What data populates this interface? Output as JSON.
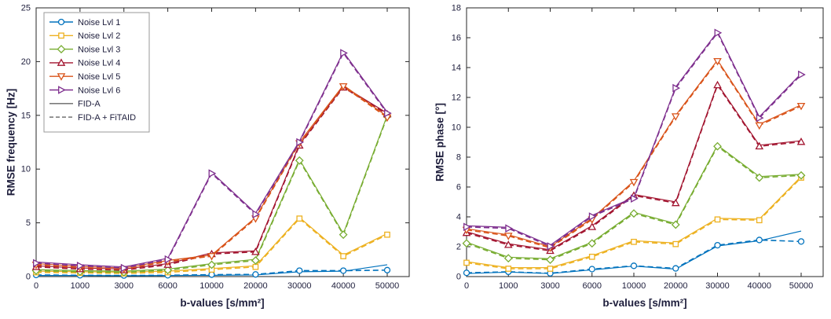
{
  "chart_data": [
    {
      "type": "line",
      "title": "",
      "xlabel": "b-values [s/mm²]",
      "ylabel": "RMSE frequency [Hz]",
      "ylim": [
        0,
        25
      ],
      "ytick_step": 5,
      "grid": false,
      "legend_position": "top-left",
      "categories": [
        "0",
        "1000",
        "3000",
        "6000",
        "10000",
        "20000",
        "30000",
        "40000",
        "50000"
      ],
      "series": [
        {
          "name": "Noise Lvl 1",
          "color": "#0072BD",
          "marker": "circle",
          "fid_a": [
            0.1,
            0.1,
            0.08,
            0.1,
            0.12,
            0.15,
            0.45,
            0.5,
            1.1
          ],
          "fid_a_fitaid": [
            0.15,
            0.12,
            0.1,
            0.12,
            0.18,
            0.2,
            0.55,
            0.55,
            0.6
          ]
        },
        {
          "name": "Noise Lvl 2",
          "color": "#EDB120",
          "marker": "square",
          "fid_a": [
            0.5,
            0.45,
            0.4,
            0.5,
            0.75,
            1.0,
            5.5,
            2.0,
            4.0
          ],
          "fid_a_fitaid": [
            0.5,
            0.45,
            0.4,
            0.5,
            0.75,
            1.0,
            5.5,
            2.0,
            4.0
          ]
        },
        {
          "name": "Noise Lvl 3",
          "color": "#77AC30",
          "marker": "diamond",
          "fid_a": [
            0.65,
            0.55,
            0.5,
            0.7,
            1.2,
            1.6,
            10.9,
            4.0,
            15.0
          ],
          "fid_a_fitaid": [
            0.65,
            0.55,
            0.5,
            0.7,
            1.2,
            1.6,
            10.9,
            4.0,
            15.0
          ]
        },
        {
          "name": "Noise Lvl 4",
          "color": "#A2142F",
          "marker": "triangle-up",
          "fid_a": [
            1.0,
            0.8,
            0.7,
            1.2,
            2.2,
            2.4,
            12.3,
            17.7,
            15.2
          ],
          "fid_a_fitaid": [
            1.0,
            0.8,
            0.7,
            1.2,
            2.2,
            2.4,
            12.3,
            17.7,
            15.2
          ]
        },
        {
          "name": "Noise Lvl 5",
          "color": "#D95319",
          "marker": "triangle-down",
          "fid_a": [
            1.2,
            0.95,
            0.8,
            1.5,
            2.0,
            5.5,
            12.5,
            17.8,
            14.9
          ],
          "fid_a_fitaid": [
            1.2,
            0.95,
            0.8,
            1.5,
            2.0,
            5.5,
            12.5,
            17.8,
            14.9
          ]
        },
        {
          "name": "Noise Lvl 6",
          "color": "#7E2F8E",
          "marker": "triangle-right",
          "fid_a": [
            1.35,
            1.1,
            0.9,
            1.7,
            9.7,
            5.9,
            12.6,
            20.9,
            15.3
          ],
          "fid_a_fitaid": [
            1.35,
            1.1,
            0.9,
            1.7,
            9.7,
            5.9,
            12.6,
            20.9,
            15.3
          ]
        }
      ]
    },
    {
      "type": "line",
      "title": "",
      "xlabel": "b-values [s/mm²]",
      "ylabel": "RMSE phase [°]",
      "ylim": [
        0,
        18
      ],
      "ytick_step": 2,
      "grid": false,
      "legend_position": "none",
      "categories": [
        "0",
        "1000",
        "3000",
        "6000",
        "10000",
        "20000",
        "30000",
        "40000",
        "50000"
      ],
      "series": [
        {
          "name": "Noise Lvl 1",
          "color": "#0072BD",
          "marker": "circle",
          "fid_a": [
            0.2,
            0.3,
            0.2,
            0.45,
            0.7,
            0.5,
            2.05,
            2.4,
            3.05
          ],
          "fid_a_fitaid": [
            0.25,
            0.32,
            0.22,
            0.5,
            0.72,
            0.55,
            2.1,
            2.45,
            2.35
          ]
        },
        {
          "name": "Noise Lvl 2",
          "color": "#EDB120",
          "marker": "square",
          "fid_a": [
            1.0,
            0.6,
            0.6,
            1.4,
            2.4,
            2.25,
            3.9,
            3.85,
            6.7
          ],
          "fid_a_fitaid": [
            1.0,
            0.6,
            0.6,
            1.4,
            2.4,
            2.25,
            3.9,
            3.85,
            6.7
          ]
        },
        {
          "name": "Noise Lvl 3",
          "color": "#77AC30",
          "marker": "diamond",
          "fid_a": [
            2.3,
            1.3,
            1.2,
            2.3,
            4.3,
            3.55,
            8.8,
            6.7,
            6.85
          ],
          "fid_a_fitaid": [
            2.3,
            1.3,
            1.2,
            2.3,
            4.3,
            3.55,
            8.8,
            6.7,
            6.85
          ]
        },
        {
          "name": "Noise Lvl 4",
          "color": "#A2142F",
          "marker": "triangle-up",
          "fid_a": [
            3.0,
            2.2,
            1.8,
            3.4,
            5.5,
            5.0,
            12.9,
            8.8,
            9.1
          ],
          "fid_a_fitaid": [
            3.0,
            2.2,
            1.8,
            3.4,
            5.5,
            5.0,
            12.9,
            8.8,
            9.1
          ]
        },
        {
          "name": "Noise Lvl 5",
          "color": "#D95319",
          "marker": "triangle-down",
          "fid_a": [
            3.2,
            2.8,
            2.0,
            3.9,
            6.4,
            10.8,
            14.5,
            10.2,
            11.5
          ],
          "fid_a_fitaid": [
            3.2,
            2.8,
            2.0,
            3.9,
            6.4,
            10.8,
            14.5,
            10.2,
            11.5
          ]
        },
        {
          "name": "Noise Lvl 6",
          "color": "#7E2F8E",
          "marker": "triangle-right",
          "fid_a": [
            3.4,
            3.3,
            2.1,
            4.1,
            5.3,
            12.7,
            16.4,
            10.7,
            13.6
          ],
          "fid_a_fitaid": [
            3.4,
            3.3,
            2.1,
            4.1,
            5.3,
            12.7,
            16.4,
            10.7,
            13.6
          ]
        }
      ]
    }
  ],
  "legend": {
    "style_entries": [
      {
        "label": "FID-A",
        "dashed": false
      },
      {
        "label": "FID-A + FiTAID",
        "dashed": true
      }
    ],
    "style_line_color": "#666666"
  },
  "colors": {
    "axis": "#262626",
    "text": "#1e1e3c",
    "legend_border": "#999999"
  }
}
